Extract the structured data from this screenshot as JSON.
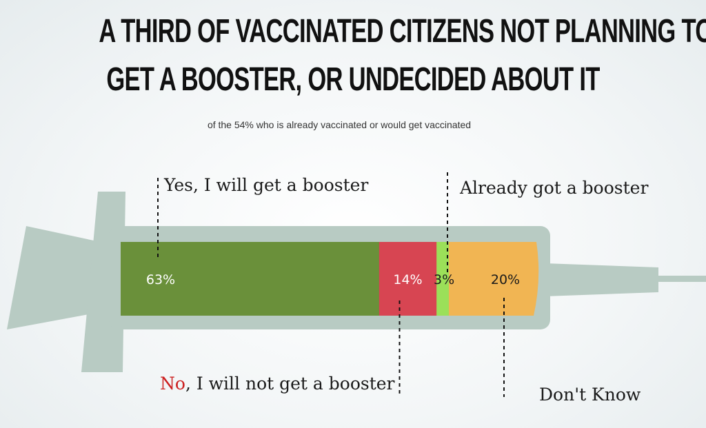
{
  "chart_data": {
    "type": "bar",
    "title": "A THIRD OF VACCINATED CITIZENS NOT PLANNING TO GET A BOOSTER, OR UNDECIDED ABOUT IT",
    "title_lines": [
      "A THIRD OF VACCINATED CITIZENS NOT PLANNING TO",
      "GET A BOOSTER, OR UNDECIDED ABOUT IT"
    ],
    "subtitle": "of the 54% who is already vaccinated or would get vaccinated",
    "stacked": true,
    "series": [
      {
        "name": "Yes, I will get a booster",
        "value": 63,
        "label": "63%",
        "color": "#6a903a",
        "text_color": "#ffffff"
      },
      {
        "name_prefix": "No",
        "name_rest": ", I will not get a booster",
        "value": 14,
        "label": "14%",
        "color": "#d74552",
        "text_color": "#ffffff",
        "prefix_color": "#cc1f1f"
      },
      {
        "name": "Already got a booster",
        "value": 3,
        "label": "3%",
        "color": "#9be059",
        "text_color": "#1a1a1a"
      },
      {
        "name": "Don't Know",
        "value": 20,
        "label": "20%",
        "color": "#f1b553",
        "text_color": "#1a1a1a"
      }
    ],
    "syringe_color": "#b8cbc3"
  }
}
